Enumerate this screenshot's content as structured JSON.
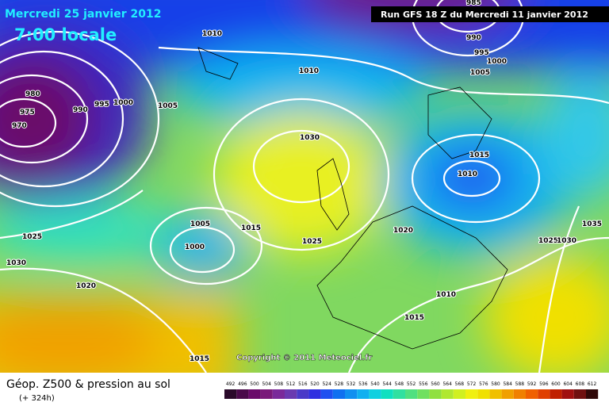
{
  "header": {
    "date": "Mercredi 25 janvier 2012",
    "time": "7:00 locale",
    "run": "Run GFS 18 Z du Mercredi 11 janvier 2012"
  },
  "map": {
    "pressure_labels": [
      1010,
      985,
      990,
      995,
      1000,
      1005,
      1010,
      980,
      975,
      970,
      990,
      995,
      1000,
      1005,
      1030,
      1015,
      1010,
      1005,
      1000,
      1015,
      1025,
      1020,
      1025,
      1030,
      1020,
      1010,
      1015,
      1035,
      1025,
      1030,
      1015
    ],
    "copyright": "Copyright © 2011 Meteociel.fr"
  },
  "footer": {
    "title": "Géop. Z500 & pression au sol",
    "lead": "(+ 324h)"
  },
  "legend": {
    "values": [
      492,
      496,
      500,
      504,
      508,
      512,
      516,
      520,
      524,
      528,
      532,
      536,
      540,
      544,
      548,
      552,
      556,
      560,
      564,
      568,
      572,
      576,
      580,
      584,
      588,
      592,
      596,
      600,
      604,
      608,
      612
    ],
    "colors": [
      "#2a0a2a",
      "#4a0a4a",
      "#6a0a6a",
      "#7a1a7a",
      "#7a2a9a",
      "#6a3ab0",
      "#4a3ac8",
      "#3030e0",
      "#2050f0",
      "#1070f0",
      "#1090f0",
      "#10b0f0",
      "#10d0e0",
      "#10e0c0",
      "#30e0a0",
      "#50e080",
      "#70e060",
      "#90e040",
      "#b0e830",
      "#d0f020",
      "#f0f010",
      "#f0e000",
      "#f0c000",
      "#f0a000",
      "#f08000",
      "#f06000",
      "#e04000",
      "#c02000",
      "#a01010",
      "#701010",
      "#300808"
    ]
  }
}
